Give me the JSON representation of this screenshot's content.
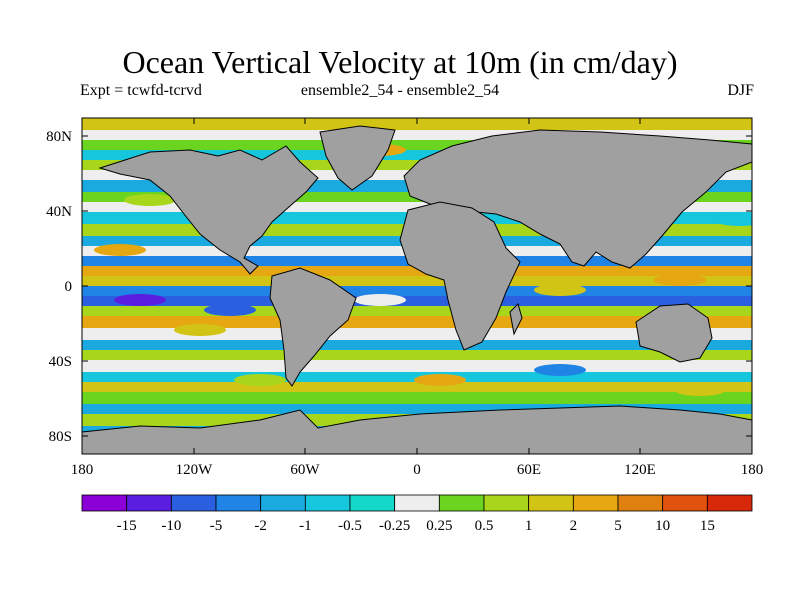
{
  "title": "Ocean Vertical Velocity at 10m (in cm/day)",
  "experiment": "Expt = tcwfd-tcrvd",
  "run": "ensemble2_54 - ensemble2_54",
  "season": "DJF",
  "lat_labels": [
    "80N",
    "40N",
    "0",
    "40S",
    "80S"
  ],
  "lon_labels": [
    "180",
    "120W",
    "60W",
    "0",
    "60E",
    "120E",
    "180"
  ],
  "colorbar": {
    "labels": [
      "-15",
      "-10",
      "-5",
      "-2",
      "-1",
      "-0.5",
      "-0.25",
      "0.25",
      "0.5",
      "1",
      "2",
      "5",
      "10",
      "15"
    ],
    "colors": [
      "#8a00d6",
      "#5a1ee0",
      "#2a5fe0",
      "#1f84e6",
      "#1aaae0",
      "#15c6dc",
      "#14d9c8",
      "#eeeeee",
      "#6ad41e",
      "#a8d61a",
      "#d2c414",
      "#e6a812",
      "#e08010",
      "#e0520e",
      "#d8280a"
    ]
  },
  "colors": {
    "land": "#a0a0a0",
    "coast": "#000000",
    "frame": "#000000"
  }
}
